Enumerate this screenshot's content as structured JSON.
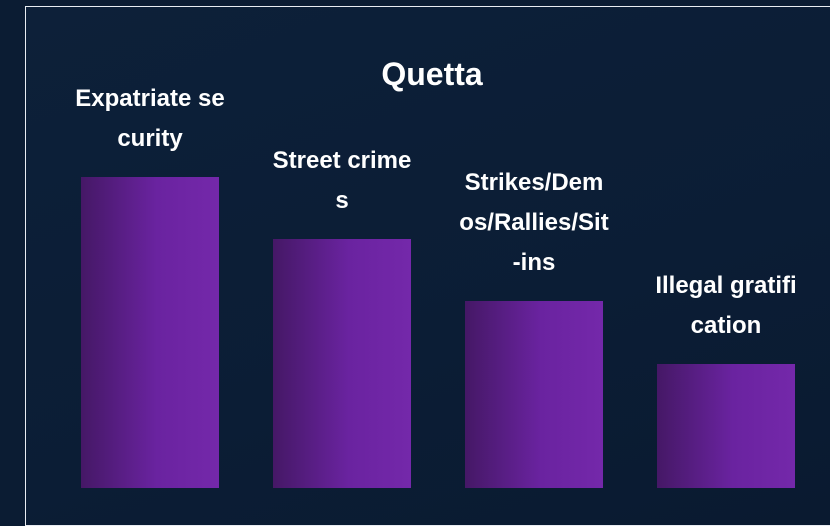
{
  "chart_data": {
    "type": "bar",
    "title": "Quetta",
    "categories": [
      "Expatriate security",
      "Street crimes",
      "Strikes/Demos/Rallies/Sit-ins",
      "Illegal gratification"
    ],
    "values": [
      5,
      4,
      3,
      2
    ],
    "color": "#6a23a0",
    "ylim": [
      0,
      5
    ]
  }
}
